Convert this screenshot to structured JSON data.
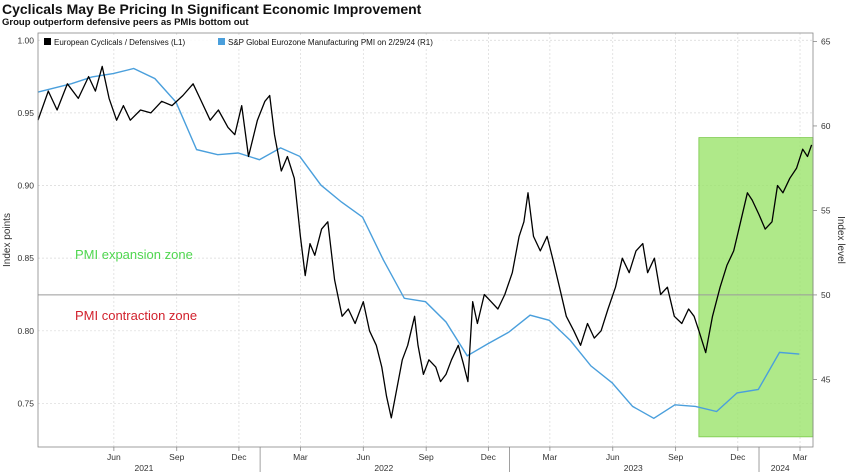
{
  "header": {
    "title": "Cyclicals May Be Pricing In Significant Economic Improvement",
    "subtitle": "Group outperform defensive peers as PMIs bottom out"
  },
  "chart_data": {
    "type": "line",
    "ylabel_left": "Index points",
    "ylabel_right": "Index level",
    "ylim_left": [
      0.72,
      1.005
    ],
    "ylim_right": [
      41,
      65.5
    ],
    "y_ticks_left": [
      "1.00",
      "0.95",
      "0.90",
      "0.85",
      "0.80",
      "0.75"
    ],
    "y_ticks_right": [
      "65",
      "60",
      "55",
      "50",
      "45"
    ],
    "x_range": [
      "2021-02-10",
      "2024-03-20"
    ],
    "x_tick_labels": [
      {
        "date": "2021-06-01",
        "label": "Jun"
      },
      {
        "date": "2021-09-01",
        "label": "Sep"
      },
      {
        "date": "2021-12-01",
        "label": "Dec"
      },
      {
        "date": "2022-03-01",
        "label": "Mar"
      },
      {
        "date": "2022-06-01",
        "label": "Jun"
      },
      {
        "date": "2022-09-01",
        "label": "Sep"
      },
      {
        "date": "2022-12-01",
        "label": "Dec"
      },
      {
        "date": "2023-03-01",
        "label": "Mar"
      },
      {
        "date": "2023-06-01",
        "label": "Jun"
      },
      {
        "date": "2023-09-01",
        "label": "Sep"
      },
      {
        "date": "2023-12-01",
        "label": "Dec"
      },
      {
        "date": "2024-03-01",
        "label": "Mar"
      }
    ],
    "year_labels": [
      {
        "date": "2021-07-15",
        "label": "2021"
      },
      {
        "date": "2022-07-01",
        "label": "2022"
      },
      {
        "date": "2023-07-01",
        "label": "2023"
      },
      {
        "date": "2024-02-01",
        "label": "2024"
      }
    ],
    "year_dividers": [
      "2022-01-01",
      "2023-01-01",
      "2024-01-01"
    ],
    "reference_line_right": 50,
    "grid": true,
    "legend_position": "top-left",
    "series": [
      {
        "name": "European Cyclicals / Defensives (L1)",
        "axis": "left",
        "color": "#000000",
        "points": [
          [
            "2021-02-10",
            0.945
          ],
          [
            "2021-02-25",
            0.965
          ],
          [
            "2021-03-10",
            0.952
          ],
          [
            "2021-03-25",
            0.97
          ],
          [
            "2021-04-10",
            0.96
          ],
          [
            "2021-04-25",
            0.975
          ],
          [
            "2021-05-05",
            0.965
          ],
          [
            "2021-05-15",
            0.982
          ],
          [
            "2021-05-25",
            0.96
          ],
          [
            "2021-06-05",
            0.945
          ],
          [
            "2021-06-15",
            0.955
          ],
          [
            "2021-06-25",
            0.945
          ],
          [
            "2021-07-10",
            0.952
          ],
          [
            "2021-07-25",
            0.95
          ],
          [
            "2021-08-10",
            0.958
          ],
          [
            "2021-08-25",
            0.955
          ],
          [
            "2021-09-10",
            0.962
          ],
          [
            "2021-09-25",
            0.97
          ],
          [
            "2021-10-05",
            0.96
          ],
          [
            "2021-10-20",
            0.945
          ],
          [
            "2021-11-01",
            0.952
          ],
          [
            "2021-11-15",
            0.94
          ],
          [
            "2021-11-25",
            0.935
          ],
          [
            "2021-12-05",
            0.955
          ],
          [
            "2021-12-15",
            0.92
          ],
          [
            "2021-12-28",
            0.945
          ],
          [
            "2022-01-08",
            0.958
          ],
          [
            "2022-01-15",
            0.962
          ],
          [
            "2022-01-22",
            0.935
          ],
          [
            "2022-02-01",
            0.91
          ],
          [
            "2022-02-10",
            0.92
          ],
          [
            "2022-02-20",
            0.905
          ],
          [
            "2022-03-01",
            0.865
          ],
          [
            "2022-03-08",
            0.838
          ],
          [
            "2022-03-15",
            0.86
          ],
          [
            "2022-03-22",
            0.852
          ],
          [
            "2022-04-01",
            0.87
          ],
          [
            "2022-04-10",
            0.875
          ],
          [
            "2022-04-20",
            0.835
          ],
          [
            "2022-05-01",
            0.81
          ],
          [
            "2022-05-10",
            0.815
          ],
          [
            "2022-05-20",
            0.805
          ],
          [
            "2022-06-01",
            0.82
          ],
          [
            "2022-06-10",
            0.8
          ],
          [
            "2022-06-20",
            0.79
          ],
          [
            "2022-06-28",
            0.775
          ],
          [
            "2022-07-05",
            0.755
          ],
          [
            "2022-07-12",
            0.74
          ],
          [
            "2022-07-20",
            0.76
          ],
          [
            "2022-07-28",
            0.78
          ],
          [
            "2022-08-05",
            0.79
          ],
          [
            "2022-08-15",
            0.81
          ],
          [
            "2022-08-20",
            0.79
          ],
          [
            "2022-08-28",
            0.77
          ],
          [
            "2022-09-05",
            0.78
          ],
          [
            "2022-09-15",
            0.775
          ],
          [
            "2022-09-22",
            0.765
          ],
          [
            "2022-09-30",
            0.77
          ],
          [
            "2022-10-08",
            0.78
          ],
          [
            "2022-10-18",
            0.79
          ],
          [
            "2022-10-25",
            0.778
          ],
          [
            "2022-11-01",
            0.765
          ],
          [
            "2022-11-08",
            0.82
          ],
          [
            "2022-11-15",
            0.805
          ],
          [
            "2022-11-25",
            0.825
          ],
          [
            "2022-12-05",
            0.82
          ],
          [
            "2022-12-15",
            0.815
          ],
          [
            "2022-12-25",
            0.825
          ],
          [
            "2023-01-05",
            0.84
          ],
          [
            "2023-01-15",
            0.865
          ],
          [
            "2023-01-22",
            0.875
          ],
          [
            "2023-01-28",
            0.895
          ],
          [
            "2023-02-05",
            0.865
          ],
          [
            "2023-02-15",
            0.855
          ],
          [
            "2023-02-25",
            0.865
          ],
          [
            "2023-03-05",
            0.85
          ],
          [
            "2023-03-15",
            0.83
          ],
          [
            "2023-03-25",
            0.81
          ],
          [
            "2023-04-05",
            0.8
          ],
          [
            "2023-04-15",
            0.79
          ],
          [
            "2023-04-25",
            0.805
          ],
          [
            "2023-05-05",
            0.795
          ],
          [
            "2023-05-15",
            0.8
          ],
          [
            "2023-05-25",
            0.815
          ],
          [
            "2023-06-05",
            0.83
          ],
          [
            "2023-06-15",
            0.85
          ],
          [
            "2023-06-25",
            0.84
          ],
          [
            "2023-07-05",
            0.855
          ],
          [
            "2023-07-15",
            0.86
          ],
          [
            "2023-07-22",
            0.84
          ],
          [
            "2023-08-01",
            0.85
          ],
          [
            "2023-08-10",
            0.825
          ],
          [
            "2023-08-20",
            0.83
          ],
          [
            "2023-08-30",
            0.81
          ],
          [
            "2023-09-10",
            0.805
          ],
          [
            "2023-09-20",
            0.815
          ],
          [
            "2023-09-28",
            0.81
          ],
          [
            "2023-10-05",
            0.8
          ],
          [
            "2023-10-15",
            0.785
          ],
          [
            "2023-10-25",
            0.81
          ],
          [
            "2023-11-05",
            0.83
          ],
          [
            "2023-11-15",
            0.845
          ],
          [
            "2023-11-25",
            0.855
          ],
          [
            "2023-12-05",
            0.875
          ],
          [
            "2023-12-15",
            0.895
          ],
          [
            "2023-12-22",
            0.89
          ],
          [
            "2024-01-01",
            0.88
          ],
          [
            "2024-01-10",
            0.87
          ],
          [
            "2024-01-20",
            0.875
          ],
          [
            "2024-01-28",
            0.9
          ],
          [
            "2024-02-05",
            0.895
          ],
          [
            "2024-02-15",
            0.905
          ],
          [
            "2024-02-25",
            0.912
          ],
          [
            "2024-03-05",
            0.925
          ],
          [
            "2024-03-12",
            0.92
          ],
          [
            "2024-03-18",
            0.928
          ]
        ]
      },
      {
        "name": "S&P Global Eurozone Manufacturing PMI on 2/29/24 (R1)",
        "axis": "right",
        "color": "#4a9fdc",
        "points": [
          [
            "2021-02-10",
            62.0
          ],
          [
            "2021-03-31",
            62.5
          ],
          [
            "2021-04-30",
            62.9
          ],
          [
            "2021-05-31",
            63.1
          ],
          [
            "2021-06-30",
            63.4
          ],
          [
            "2021-07-31",
            62.8
          ],
          [
            "2021-08-31",
            61.4
          ],
          [
            "2021-09-30",
            58.6
          ],
          [
            "2021-10-31",
            58.3
          ],
          [
            "2021-11-30",
            58.4
          ],
          [
            "2021-12-31",
            58.0
          ],
          [
            "2022-01-31",
            58.7
          ],
          [
            "2022-02-28",
            58.2
          ],
          [
            "2022-03-31",
            56.5
          ],
          [
            "2022-04-30",
            55.5
          ],
          [
            "2022-05-31",
            54.6
          ],
          [
            "2022-06-30",
            52.1
          ],
          [
            "2022-07-31",
            49.8
          ],
          [
            "2022-08-31",
            49.6
          ],
          [
            "2022-09-30",
            48.4
          ],
          [
            "2022-10-31",
            46.4
          ],
          [
            "2022-11-30",
            47.1
          ],
          [
            "2022-12-31",
            47.8
          ],
          [
            "2023-01-31",
            48.8
          ],
          [
            "2023-02-28",
            48.5
          ],
          [
            "2023-03-31",
            47.3
          ],
          [
            "2023-04-30",
            45.8
          ],
          [
            "2023-05-31",
            44.8
          ],
          [
            "2023-06-30",
            43.4
          ],
          [
            "2023-07-31",
            42.7
          ],
          [
            "2023-08-31",
            43.5
          ],
          [
            "2023-09-30",
            43.4
          ],
          [
            "2023-10-31",
            43.1
          ],
          [
            "2023-11-30",
            44.2
          ],
          [
            "2023-12-31",
            44.4
          ],
          [
            "2024-01-31",
            46.6
          ],
          [
            "2024-02-29",
            46.5
          ]
        ]
      }
    ],
    "annotations": [
      {
        "text": "PMI expansion zone",
        "color": "#4fd64f"
      },
      {
        "text": "PMI contraction zone",
        "color": "#d2222d"
      }
    ],
    "highlight_box": {
      "x0": "2023-10-05",
      "x1": "2024-03-25",
      "y0_left": 0.727,
      "y1_left": 0.933,
      "color": "#9be36b"
    }
  }
}
